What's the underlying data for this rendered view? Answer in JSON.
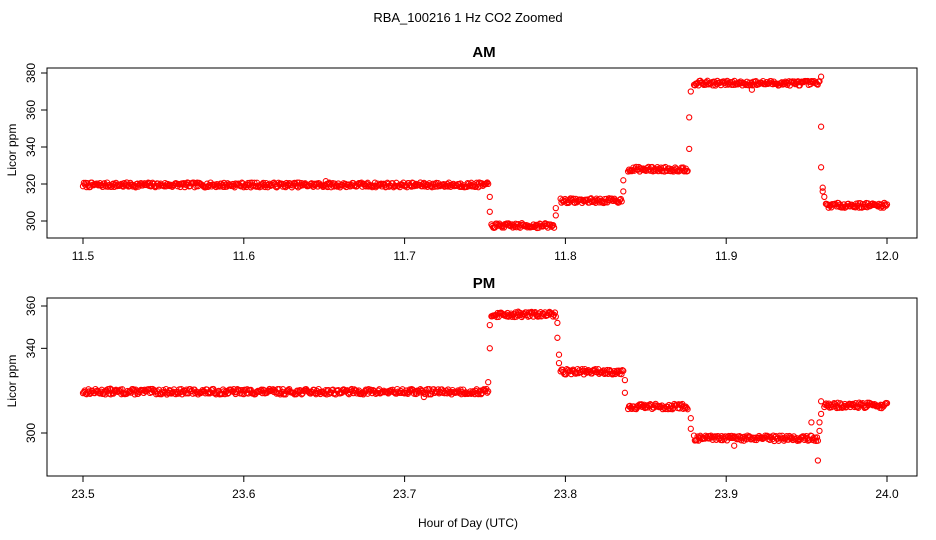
{
  "figure": {
    "title": "RBA_100216  1 Hz CO2 Zoomed",
    "xlabel": "Hour of Day (UTC)",
    "marker_color": "#ff0000"
  },
  "chart_data": [
    {
      "type": "scatter",
      "title": "AM",
      "xlabel": "Hour of Day (UTC)",
      "ylabel": "Licor ppm",
      "xlim": [
        11.5,
        12.0
      ],
      "ylim": [
        293,
        383
      ],
      "xticks": [
        "11.5",
        "11.6",
        "11.7",
        "11.8",
        "11.9",
        "12.0"
      ],
      "yticks": [
        "300",
        "320",
        "340",
        "360",
        "380"
      ],
      "grid": false,
      "series": [
        {
          "marker": "open-circle",
          "color": "#ff0000",
          "segments": [
            {
              "x_start": 11.5,
              "x_end": 11.752,
              "y": 319.5
            },
            {
              "x_start": 11.754,
              "x_end": 11.793,
              "y": 297.5
            },
            {
              "x_start": 11.797,
              "x_end": 11.835,
              "y": 311
            },
            {
              "x_start": 11.839,
              "x_end": 11.876,
              "y": 328
            },
            {
              "x_start": 11.88,
              "x_end": 11.958,
              "y": 374.5
            },
            {
              "x_start": 11.962,
              "x_end": 12.0,
              "y": 308.5
            }
          ],
          "transition_points": [
            {
              "x": 11.753,
              "y": 313
            },
            {
              "x": 11.753,
              "y": 305
            },
            {
              "x": 11.794,
              "y": 303
            },
            {
              "x": 11.794,
              "y": 307
            },
            {
              "x": 11.836,
              "y": 316
            },
            {
              "x": 11.836,
              "y": 322
            },
            {
              "x": 11.877,
              "y": 339
            },
            {
              "x": 11.877,
              "y": 356
            },
            {
              "x": 11.878,
              "y": 370
            },
            {
              "x": 11.916,
              "y": 371
            },
            {
              "x": 11.959,
              "y": 351
            },
            {
              "x": 11.959,
              "y": 329
            },
            {
              "x": 11.96,
              "y": 318
            },
            {
              "x": 11.96,
              "y": 316
            },
            {
              "x": 11.959,
              "y": 378
            },
            {
              "x": 11.961,
              "y": 313
            },
            {
              "x": 11.651,
              "y": 321.5
            }
          ]
        }
      ]
    },
    {
      "type": "scatter",
      "title": "PM",
      "xlabel": "Hour of Day (UTC)",
      "ylabel": "Licor ppm",
      "xlim": [
        23.5,
        24.0
      ],
      "ylim": [
        283,
        364
      ],
      "xticks": [
        "23.5",
        "23.6",
        "23.7",
        "23.8",
        "23.9",
        "24.0"
      ],
      "yticks": [
        "300",
        "340",
        "360"
      ],
      "grid": false,
      "series": [
        {
          "marker": "open-circle",
          "color": "#ff0000",
          "segments": [
            {
              "x_start": 23.5,
              "x_end": 23.752,
              "y": 319.5
            },
            {
              "x_start": 23.754,
              "x_end": 23.794,
              "y": 356
            },
            {
              "x_start": 23.797,
              "x_end": 23.836,
              "y": 329
            },
            {
              "x_start": 23.839,
              "x_end": 23.876,
              "y": 312.5
            },
            {
              "x_start": 23.88,
              "x_end": 23.957,
              "y": 297.5
            },
            {
              "x_start": 23.961,
              "x_end": 24.0,
              "y": 313
            }
          ],
          "transition_points": [
            {
              "x": 23.752,
              "y": 324
            },
            {
              "x": 23.753,
              "y": 340
            },
            {
              "x": 23.753,
              "y": 351
            },
            {
              "x": 23.795,
              "y": 352
            },
            {
              "x": 23.795,
              "y": 345
            },
            {
              "x": 23.796,
              "y": 337
            },
            {
              "x": 23.796,
              "y": 333
            },
            {
              "x": 23.837,
              "y": 325
            },
            {
              "x": 23.837,
              "y": 319
            },
            {
              "x": 23.878,
              "y": 307
            },
            {
              "x": 23.878,
              "y": 302
            },
            {
              "x": 23.953,
              "y": 305
            },
            {
              "x": 23.957,
              "y": 287
            },
            {
              "x": 23.958,
              "y": 301
            },
            {
              "x": 23.958,
              "y": 305
            },
            {
              "x": 23.959,
              "y": 309
            },
            {
              "x": 23.959,
              "y": 315
            },
            {
              "x": 23.712,
              "y": 317
            },
            {
              "x": 23.517,
              "y": 321
            },
            {
              "x": 23.905,
              "y": 294
            }
          ]
        }
      ]
    }
  ]
}
